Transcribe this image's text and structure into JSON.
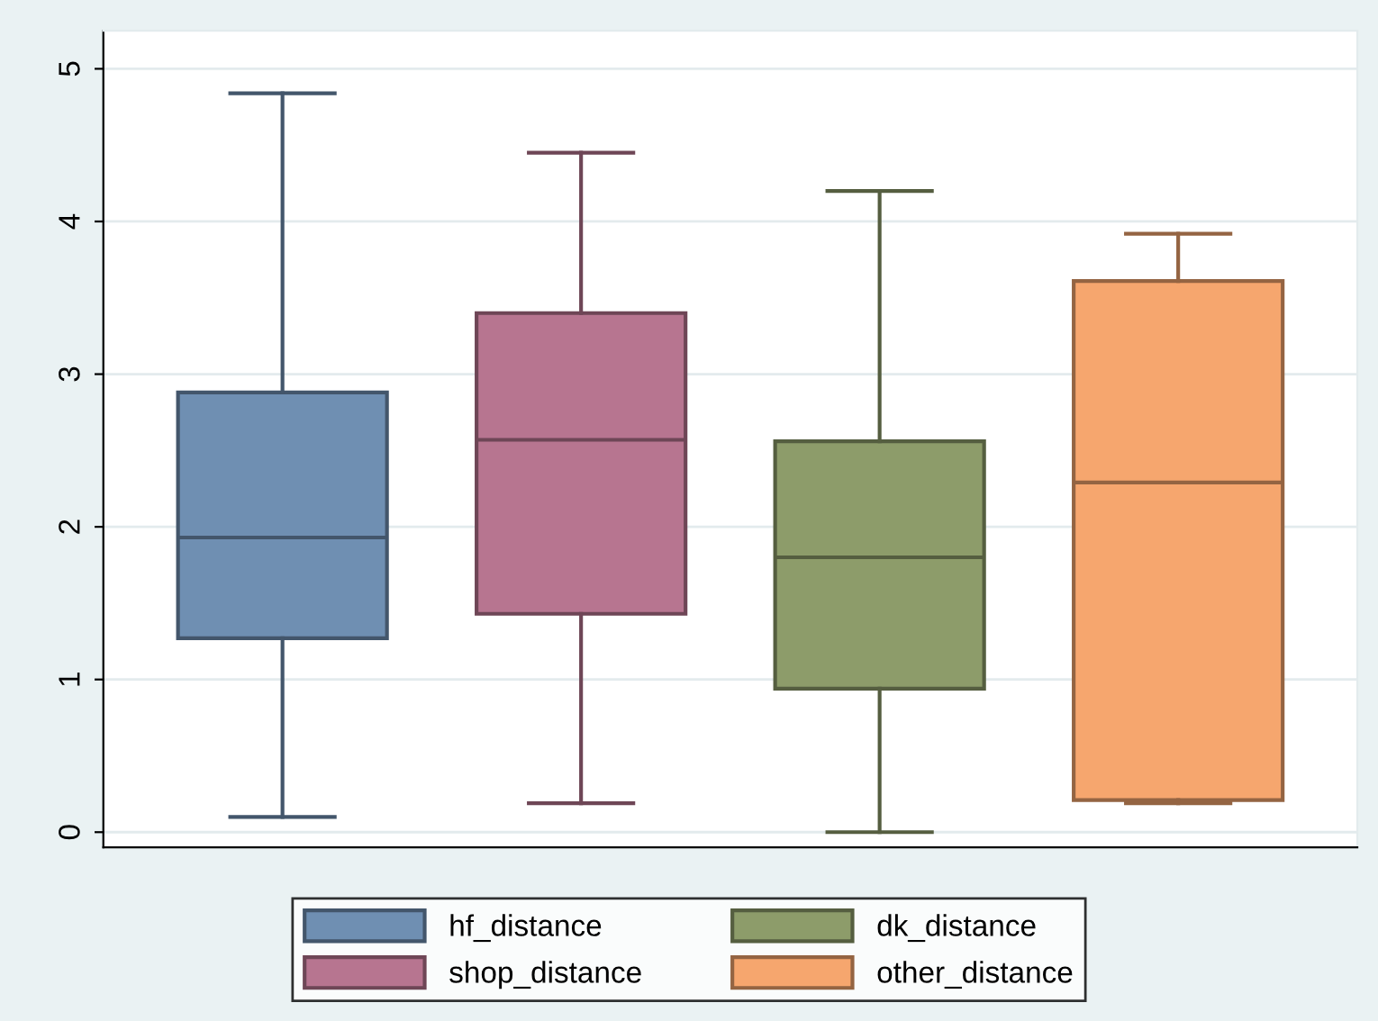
{
  "chart_data": {
    "type": "box",
    "categories": [
      null,
      null,
      null,
      null
    ],
    "series": [
      {
        "name": "hf_distance",
        "color": "#6f8fb2",
        "boxes": [
          {
            "low": 0.1,
            "q1": 1.27,
            "median": 1.93,
            "q3": 2.88,
            "high": 4.84
          },
          null,
          null,
          null
        ]
      },
      {
        "name": "shop_distance",
        "color": "#b77590",
        "boxes": [
          null,
          {
            "low": 0.19,
            "q1": 1.43,
            "median": 2.57,
            "q3": 3.4,
            "high": 4.45
          },
          null,
          null
        ]
      },
      {
        "name": "dk_distance",
        "color": "#8d9c6a",
        "boxes": [
          null,
          null,
          {
            "low": 0.0,
            "q1": 0.94,
            "median": 1.8,
            "q3": 2.56,
            "high": 4.2
          },
          null
        ]
      },
      {
        "name": "other_distance",
        "color": "#f6a66e",
        "boxes": [
          null,
          null,
          null,
          {
            "low": 0.19,
            "q1": 0.21,
            "median": 2.29,
            "q3": 3.61,
            "high": 3.92
          }
        ]
      }
    ],
    "ylim": [
      -0.1,
      5.25
    ],
    "yticks": [
      0,
      1,
      2,
      3,
      4,
      5
    ],
    "grid": "y",
    "legend": "bottom",
    "tick_labels": "y"
  }
}
